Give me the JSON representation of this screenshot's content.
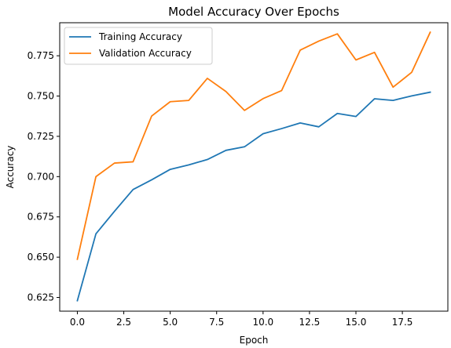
{
  "chart_data": {
    "type": "line",
    "title": "Model Accuracy Over Epochs",
    "xlabel": "Epoch",
    "ylabel": "Accuracy",
    "xlim": [
      -0.95,
      19.95
    ],
    "ylim": [
      0.6165,
      0.7955
    ],
    "x": [
      0,
      1,
      2,
      3,
      4,
      5,
      6,
      7,
      8,
      9,
      10,
      11,
      12,
      13,
      14,
      15,
      16,
      17,
      18,
      19
    ],
    "xticks": [
      0.0,
      2.5,
      5.0,
      7.5,
      10.0,
      12.5,
      15.0,
      17.5
    ],
    "xtick_labels": [
      "0.0",
      "2.5",
      "5.0",
      "7.5",
      "10.0",
      "12.5",
      "15.0",
      "17.5"
    ],
    "yticks": [
      0.625,
      0.65,
      0.675,
      0.7,
      0.725,
      0.75,
      0.775
    ],
    "ytick_labels": [
      "0.625",
      "0.650",
      "0.675",
      "0.700",
      "0.725",
      "0.750",
      "0.775"
    ],
    "grid": false,
    "legend": "top-left",
    "series": [
      {
        "name": "Training Accuracy",
        "color": "#1f77b4",
        "values": [
          0.623,
          0.6645,
          0.6785,
          0.692,
          0.698,
          0.7045,
          0.7073,
          0.7106,
          0.7163,
          0.7185,
          0.7266,
          0.7298,
          0.7333,
          0.7309,
          0.7392,
          0.7373,
          0.7483,
          0.7473,
          0.7501,
          0.7524
        ]
      },
      {
        "name": "Validation Accuracy",
        "color": "#ff7f0e",
        "values": [
          0.6487,
          0.7,
          0.7084,
          0.7092,
          0.7376,
          0.7465,
          0.7473,
          0.761,
          0.7528,
          0.7411,
          0.7484,
          0.7534,
          0.7785,
          0.7841,
          0.7886,
          0.7724,
          0.7771,
          0.7555,
          0.7647,
          0.7896
        ]
      }
    ]
  }
}
